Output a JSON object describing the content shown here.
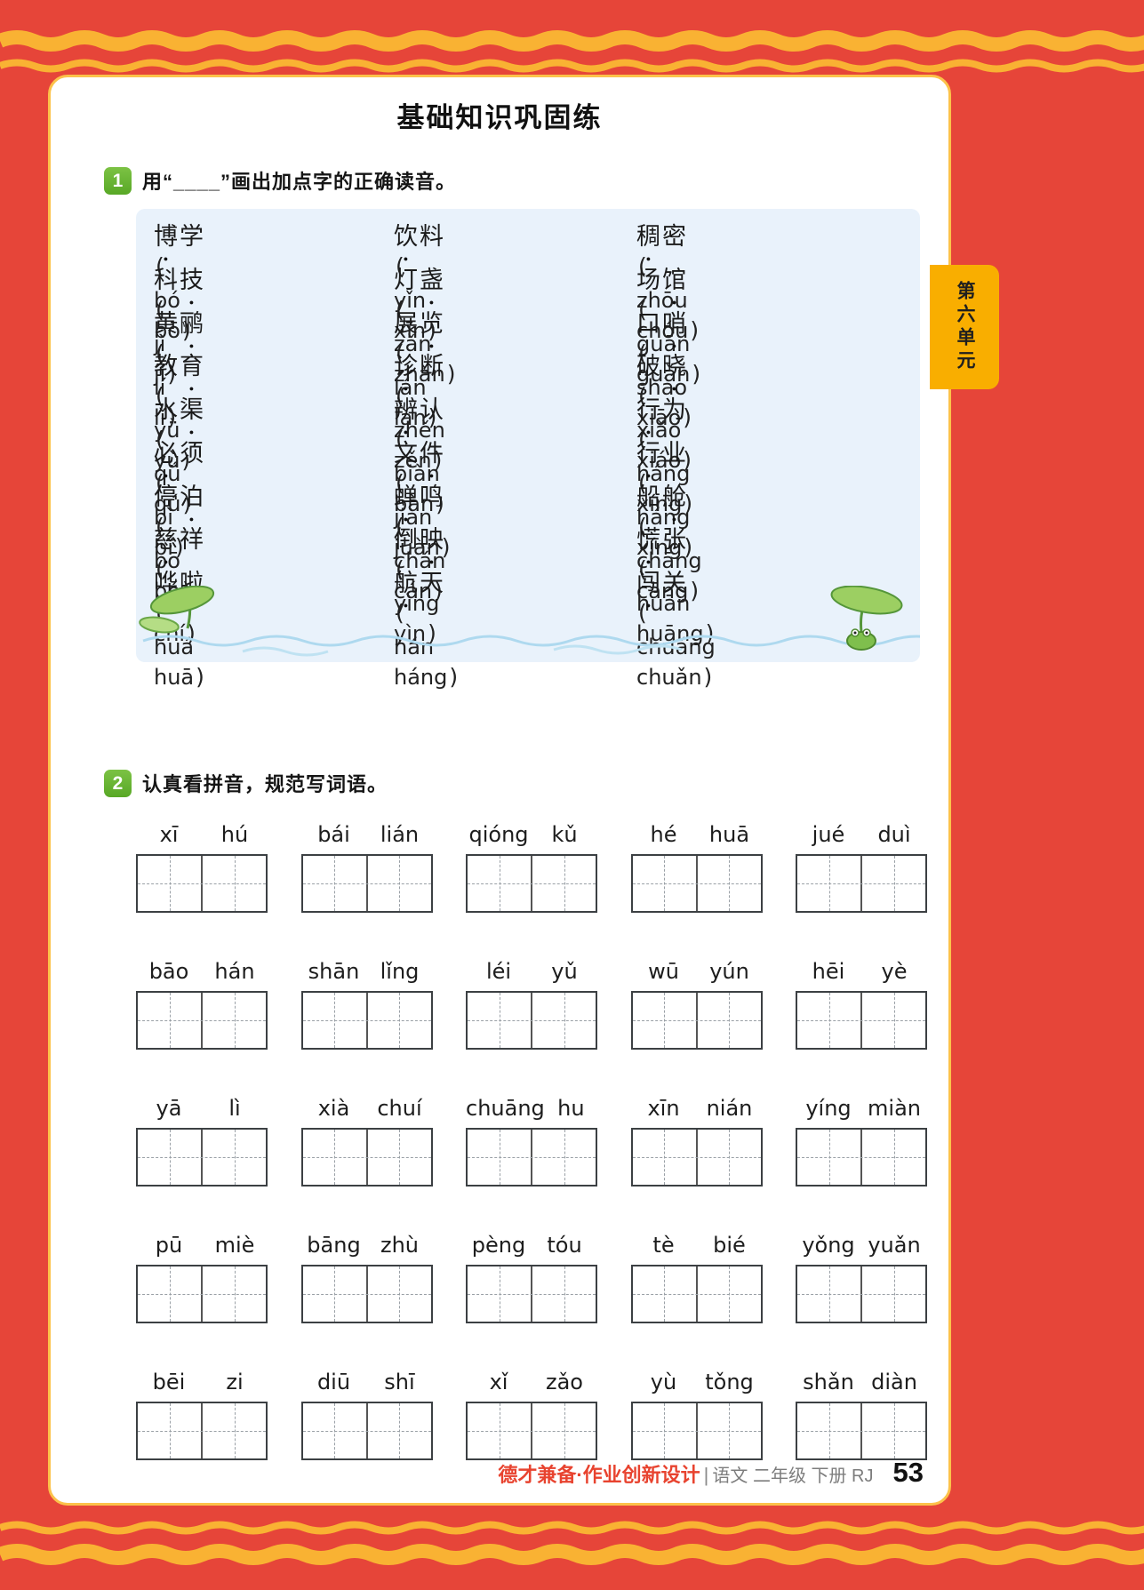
{
  "page": {
    "title": "基础知识巩固练",
    "unit_tab": "第六单元",
    "page_number": "53"
  },
  "colors": {
    "page_red": "#e64539",
    "border_gold": "#f9b233",
    "tab_yellow": "#f9ae00",
    "badge_green": "#62b230",
    "box_blue": "#e9f2fb",
    "footer_red": "#e8432f"
  },
  "section1": {
    "number": "1",
    "instruction": "用“____”画出加点字的正确读音。",
    "columns": [
      [
        {
          "word": "博学",
          "dot_index": 0,
          "options": [
            "bó",
            "bō"
          ]
        },
        {
          "word": "科技",
          "dot_index": 1,
          "options": [
            "jì",
            "jí"
          ]
        },
        {
          "word": "黄鹂",
          "dot_index": 1,
          "options": [
            "lí",
            "lǐ"
          ]
        },
        {
          "word": "教育",
          "dot_index": 1,
          "options": [
            "yǜ",
            "yù"
          ]
        },
        {
          "word": "水渠",
          "dot_index": 1,
          "options": [
            "qǘ",
            "qú"
          ]
        },
        {
          "word": "必须",
          "dot_index": 0,
          "options": [
            "bì",
            "bǐ"
          ]
        },
        {
          "word": "停泊",
          "dot_index": 1,
          "options": [
            "bō",
            "bó"
          ]
        },
        {
          "word": "慈祥",
          "dot_index": 0,
          "options": [
            "cí",
            "chí"
          ]
        },
        {
          "word": "哗啦",
          "dot_index": 0,
          "options": [
            "huá",
            "huā"
          ]
        }
      ],
      [
        {
          "word": "饮料",
          "dot_index": 0,
          "options": [
            "yǐn",
            "xīn"
          ]
        },
        {
          "word": "灯盏",
          "dot_index": 1,
          "options": [
            "zǎn",
            "zhǎn"
          ]
        },
        {
          "word": "展览",
          "dot_index": 1,
          "options": [
            "lán",
            "lǎn"
          ]
        },
        {
          "word": "诊断",
          "dot_index": 0,
          "options": [
            "zhěn",
            "zěn"
          ]
        },
        {
          "word": "辨认",
          "dot_index": 0,
          "options": [
            "biàn",
            "bàn"
          ]
        },
        {
          "word": "文件",
          "dot_index": 1,
          "options": [
            "jiàn",
            "juàn"
          ]
        },
        {
          "word": "蝉鸣",
          "dot_index": 0,
          "options": [
            "chán",
            "cán"
          ]
        },
        {
          "word": "倒映",
          "dot_index": 1,
          "options": [
            "yìng",
            "yìn"
          ]
        },
        {
          "word": "航天",
          "dot_index": 0,
          "options": [
            "hán",
            "háng"
          ]
        }
      ],
      [
        {
          "word": "稠密",
          "dot_index": 0,
          "options": [
            "zhōu",
            "chóu"
          ]
        },
        {
          "word": "场馆",
          "dot_index": 1,
          "options": [
            "guān",
            "guǎn"
          ]
        },
        {
          "word": "口哨",
          "dot_index": 1,
          "options": [
            "shào",
            "xiāo"
          ]
        },
        {
          "word": "破晓",
          "dot_index": 1,
          "options": [
            "xiǎo",
            "xiáo"
          ]
        },
        {
          "word": "行为",
          "dot_index": 0,
          "options": [
            "háng",
            "xíng"
          ]
        },
        {
          "word": "行业",
          "dot_index": 0,
          "options": [
            "háng",
            "xíng"
          ]
        },
        {
          "word": "船舱",
          "dot_index": 1,
          "options": [
            "chāng",
            "cāng"
          ]
        },
        {
          "word": "慌张",
          "dot_index": 0,
          "options": [
            "huān",
            "huāng"
          ]
        },
        {
          "word": "闯关",
          "dot_index": 0,
          "options": [
            "chuǎng",
            "chuǎn"
          ]
        }
      ]
    ]
  },
  "section2": {
    "number": "2",
    "instruction": "认真看拼音，规范写词语。",
    "rows": [
      [
        [
          "xī",
          "hú"
        ],
        [
          "bái",
          "lián"
        ],
        [
          "qióng",
          "kǔ"
        ],
        [
          "hé",
          "huā"
        ],
        [
          "jué",
          "duì"
        ]
      ],
      [
        [
          "bāo",
          "hán"
        ],
        [
          "shān",
          "lǐng"
        ],
        [
          "léi",
          "yǔ"
        ],
        [
          "wū",
          "yún"
        ],
        [
          "hēi",
          "yè"
        ]
      ],
      [
        [
          "yā",
          "lì"
        ],
        [
          "xià",
          "chuí"
        ],
        [
          "chuāng",
          "hu"
        ],
        [
          "xīn",
          "nián"
        ],
        [
          "yíng",
          "miàn"
        ]
      ],
      [
        [
          "pū",
          "miè"
        ],
        [
          "bāng",
          "zhù"
        ],
        [
          "pèng",
          "tóu"
        ],
        [
          "tè",
          "bié"
        ],
        [
          "yǒng",
          "yuǎn"
        ]
      ],
      [
        [
          "bēi",
          "zi"
        ],
        [
          "diū",
          "shī"
        ],
        [
          "xǐ",
          "zǎo"
        ],
        [
          "yù",
          "tǒng"
        ],
        [
          "shǎn",
          "diàn"
        ]
      ]
    ]
  },
  "footer": {
    "series": "德才兼备·作业创新设计",
    "divider": "|",
    "edition": "语文 二年级 下册 RJ"
  },
  "decorations": {
    "top_border": "wavy-gold-border",
    "bottom_border": "wavy-gold-border",
    "water": "water-waves",
    "left_plant": "lotus-leaf",
    "right_plant": "lotus-leaf-with-frog"
  }
}
